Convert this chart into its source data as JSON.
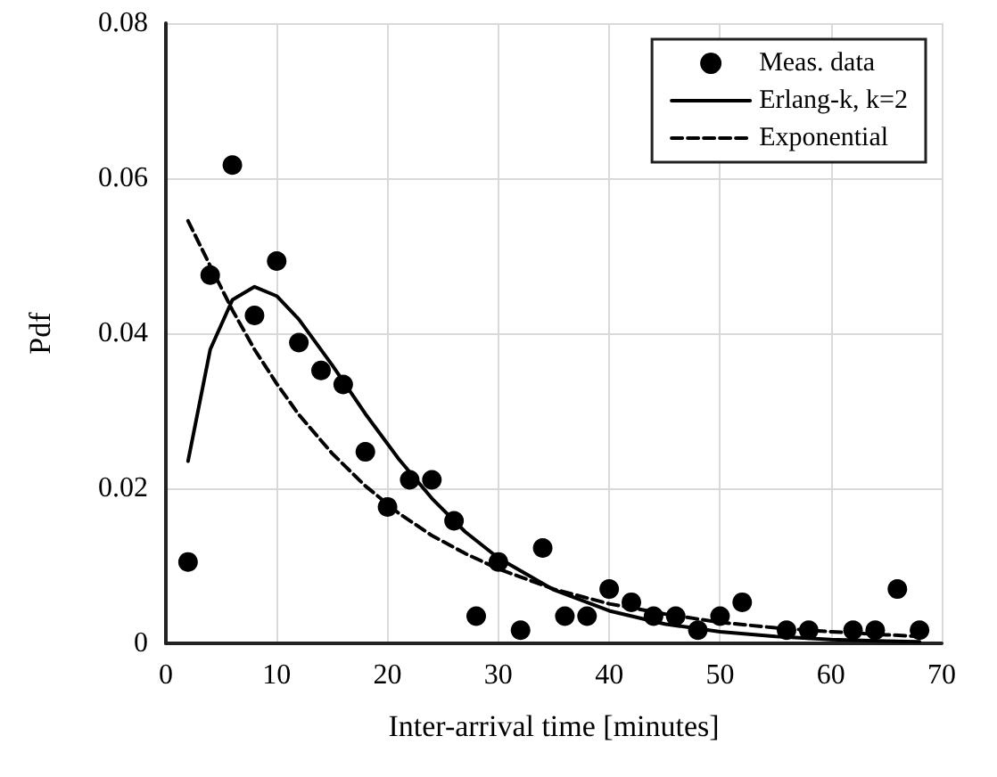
{
  "chart_data": {
    "type": "scatter",
    "xlabel": "Inter-arrival time [minutes]",
    "ylabel": "Pdf",
    "xlim": [
      0,
      70
    ],
    "xticks": [
      0,
      10,
      20,
      30,
      40,
      50,
      60,
      70
    ],
    "ylim": [
      0,
      0.08
    ],
    "yticks": [
      0,
      0.02,
      0.04,
      0.06,
      0.08
    ],
    "grid": true,
    "legend": "top right",
    "series": [
      {
        "name": "Meas. data",
        "color": "#000000",
        "marker": "circle",
        "x": [
          2,
          4,
          6,
          8,
          10,
          12,
          14,
          16,
          18,
          20,
          22,
          24,
          26,
          28,
          30,
          32,
          34,
          36,
          38,
          40,
          42,
          44,
          46,
          48,
          50,
          52,
          56,
          58,
          62,
          64,
          66,
          68
        ],
        "values": [
          0.0105,
          0.0475,
          0.0617,
          0.0423,
          0.0493,
          0.0388,
          0.0352,
          0.0334,
          0.0247,
          0.0176,
          0.0211,
          0.0211,
          0.0158,
          0.0035,
          0.0105,
          0.0017,
          0.0123,
          0.0035,
          0.0035,
          0.007,
          0.0053,
          0.0035,
          0.0035,
          0.0017,
          0.0035,
          0.0053,
          0.0017,
          0.0017,
          0.0017,
          0.0017,
          0.007,
          0.0017
        ]
      },
      {
        "name": "Erlang-k, k=2",
        "type": "line",
        "color": "#000000",
        "marker": "none",
        "line_style": "solid",
        "x": [
          2,
          4,
          6,
          8,
          10,
          12,
          15,
          18,
          21,
          24,
          27,
          30,
          35,
          40,
          45,
          50,
          55,
          60,
          65,
          68
        ],
        "values": [
          0.0235,
          0.0379,
          0.0443,
          0.046,
          0.0448,
          0.0418,
          0.0359,
          0.0296,
          0.0238,
          0.0187,
          0.0144,
          0.011,
          0.0069,
          0.0042,
          0.0025,
          0.0015,
          0.0009,
          0.0005,
          0.0003,
          0.0002
        ]
      },
      {
        "name": "Exponential",
        "type": "line",
        "color": "#000000",
        "marker": "none",
        "line_style": "dashed",
        "x": [
          2,
          4,
          6,
          8,
          10,
          12,
          15,
          18,
          21,
          24,
          27,
          30,
          35,
          40,
          45,
          50,
          55,
          60,
          65,
          68
        ],
        "values": [
          0.0545,
          0.0487,
          0.043,
          0.0379,
          0.0335,
          0.0295,
          0.0245,
          0.0203,
          0.0168,
          0.0139,
          0.0116,
          0.0096,
          0.007,
          0.0051,
          0.0038,
          0.0027,
          0.002,
          0.0015,
          0.0011,
          0.0009
        ]
      }
    ]
  }
}
